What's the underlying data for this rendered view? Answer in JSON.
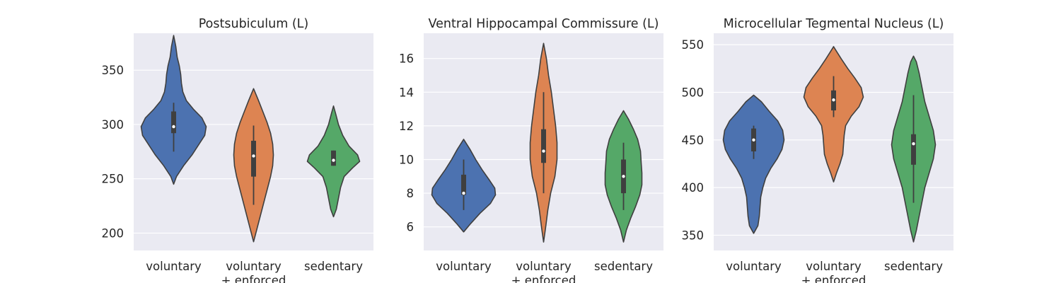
{
  "chart_data": [
    {
      "type": "violin",
      "title": "Postsubiculum (L)",
      "xlabel": "",
      "ylabel": "",
      "categories": [
        "voluntary",
        "voluntary\n+ enforced",
        "sedentary"
      ],
      "yticks": [
        200,
        250,
        300,
        350
      ],
      "ylim": [
        184,
        384
      ],
      "grid": true,
      "colors": [
        "#4c72b0",
        "#dd8452",
        "#55a868"
      ],
      "violins": [
        {
          "category": "voluntary",
          "median": 298,
          "q1": 292,
          "q3": 312,
          "whisker_low": 275,
          "whisker_high": 320,
          "density": [
            [
              245,
              0
            ],
            [
              252,
              4
            ],
            [
              262,
              14
            ],
            [
              272,
              26
            ],
            [
              282,
              36
            ],
            [
              290,
              44
            ],
            [
              298,
              46
            ],
            [
              306,
              40
            ],
            [
              314,
              28
            ],
            [
              322,
              18
            ],
            [
              330,
              13
            ],
            [
              338,
              11
            ],
            [
              346,
              10
            ],
            [
              354,
              8
            ],
            [
              362,
              5
            ],
            [
              372,
              3
            ],
            [
              382,
              0
            ]
          ]
        },
        {
          "category": "voluntary\n+ enforced",
          "median": 271,
          "q1": 252,
          "q3": 285,
          "whisker_low": 226,
          "whisker_high": 299,
          "density": [
            [
              192,
              0
            ],
            [
              202,
              4
            ],
            [
              212,
              8
            ],
            [
              222,
              12
            ],
            [
              232,
              16
            ],
            [
              242,
              20
            ],
            [
              252,
              24
            ],
            [
              262,
              27
            ],
            [
              272,
              28
            ],
            [
              282,
              27
            ],
            [
              292,
              24
            ],
            [
              302,
              19
            ],
            [
              312,
              13
            ],
            [
              322,
              7
            ],
            [
              333,
              0
            ]
          ]
        },
        {
          "category": "sedentary",
          "median": 267,
          "q1": 262,
          "q3": 276,
          "whisker_low": 262,
          "whisker_high": 276,
          "density": [
            [
              215,
              0
            ],
            [
              222,
              4
            ],
            [
              232,
              7
            ],
            [
              242,
              10
            ],
            [
              252,
              15
            ],
            [
              260,
              27
            ],
            [
              266,
              37
            ],
            [
              272,
              34
            ],
            [
              280,
              22
            ],
            [
              290,
              13
            ],
            [
              300,
              7
            ],
            [
              310,
              3
            ],
            [
              317,
              0
            ]
          ]
        }
      ]
    },
    {
      "type": "violin",
      "title": "Ventral Hippocampal Commissure (L)",
      "xlabel": "",
      "ylabel": "",
      "categories": [
        "voluntary",
        "voluntary\n+ enforced",
        "sedentary"
      ],
      "yticks": [
        6,
        8,
        10,
        12,
        14,
        16
      ],
      "ylim": [
        4.6,
        17.5
      ],
      "grid": true,
      "colors": [
        "#4c72b0",
        "#dd8452",
        "#55a868"
      ],
      "violins": [
        {
          "category": "voluntary",
          "median": 8,
          "q1": 7.9,
          "q3": 9.1,
          "whisker_low": 7,
          "whisker_high": 10,
          "density": [
            [
              5.7,
              0
            ],
            [
              6.2,
              10
            ],
            [
              6.8,
              23
            ],
            [
              7.4,
              38
            ],
            [
              7.9,
              45
            ],
            [
              8.3,
              44
            ],
            [
              8.8,
              36
            ],
            [
              9.4,
              26
            ],
            [
              10.0,
              17
            ],
            [
              10.6,
              9
            ],
            [
              11.2,
              0
            ]
          ]
        },
        {
          "category": "voluntary\n+ enforced",
          "median": 10.5,
          "q1": 9.8,
          "q3": 11.8,
          "whisker_low": 8,
          "whisker_high": 14,
          "density": [
            [
              5.1,
              0
            ],
            [
              6.0,
              3
            ],
            [
              7.0,
              6
            ],
            [
              8.0,
              10
            ],
            [
              9.0,
              16
            ],
            [
              10.0,
              19
            ],
            [
              11.0,
              19
            ],
            [
              12.0,
              17
            ],
            [
              13.0,
              14
            ],
            [
              14.0,
              11
            ],
            [
              15.0,
              7
            ],
            [
              16.0,
              4
            ],
            [
              16.9,
              0
            ]
          ]
        },
        {
          "category": "sedentary",
          "median": 9,
          "q1": 8,
          "q3": 10,
          "whisker_low": 7,
          "whisker_high": 11,
          "density": [
            [
              5.1,
              0
            ],
            [
              5.8,
              4
            ],
            [
              6.5,
              10
            ],
            [
              7.2,
              17
            ],
            [
              7.9,
              23
            ],
            [
              8.5,
              26
            ],
            [
              9.2,
              26
            ],
            [
              9.8,
              25
            ],
            [
              10.5,
              24
            ],
            [
              11.2,
              20
            ],
            [
              11.8,
              14
            ],
            [
              12.4,
              7
            ],
            [
              12.9,
              0
            ]
          ]
        }
      ]
    },
    {
      "type": "violin",
      "title": "Microcellular Tegmental Nucleus (L)",
      "xlabel": "",
      "ylabel": "",
      "categories": [
        "voluntary",
        "voluntary\n+ enforced",
        "sedentary"
      ],
      "yticks": [
        350,
        400,
        450,
        500,
        550
      ],
      "ylim": [
        334,
        562
      ],
      "grid": true,
      "colors": [
        "#4c72b0",
        "#dd8452",
        "#55a868"
      ],
      "violins": [
        {
          "category": "voluntary",
          "median": 450,
          "q1": 438,
          "q3": 462,
          "whisker_low": 430,
          "whisker_high": 465,
          "density": [
            [
              352,
              0
            ],
            [
              360,
              6
            ],
            [
              370,
              8
            ],
            [
              380,
              9
            ],
            [
              390,
              10
            ],
            [
              400,
              13
            ],
            [
              410,
              17
            ],
            [
              420,
              24
            ],
            [
              430,
              33
            ],
            [
              440,
              40
            ],
            [
              450,
              43
            ],
            [
              460,
              41
            ],
            [
              470,
              34
            ],
            [
              480,
              22
            ],
            [
              490,
              11
            ],
            [
              497,
              0
            ]
          ]
        },
        {
          "category": "voluntary\n+ enforced",
          "median": 492,
          "q1": 481,
          "q3": 502,
          "whisker_low": 474,
          "whisker_high": 517,
          "density": [
            [
              406,
              0
            ],
            [
              415,
              4
            ],
            [
              425,
              9
            ],
            [
              435,
              13
            ],
            [
              445,
              14
            ],
            [
              455,
              15
            ],
            [
              465,
              17
            ],
            [
              475,
              25
            ],
            [
              485,
              36
            ],
            [
              495,
              42
            ],
            [
              505,
              39
            ],
            [
              515,
              30
            ],
            [
              525,
              20
            ],
            [
              535,
              11
            ],
            [
              542,
              5
            ],
            [
              548,
              0
            ]
          ]
        },
        {
          "category": "sedentary",
          "median": 446,
          "q1": 424,
          "q3": 456,
          "whisker_low": 384,
          "whisker_high": 497,
          "density": [
            [
              343,
              0
            ],
            [
              355,
              4
            ],
            [
              370,
              8
            ],
            [
              385,
              12
            ],
            [
              400,
              16
            ],
            [
              415,
              22
            ],
            [
              430,
              28
            ],
            [
              445,
              31
            ],
            [
              460,
              28
            ],
            [
              475,
              22
            ],
            [
              490,
              16
            ],
            [
              505,
              12
            ],
            [
              520,
              8
            ],
            [
              532,
              4
            ],
            [
              538,
              0
            ]
          ]
        }
      ]
    }
  ]
}
